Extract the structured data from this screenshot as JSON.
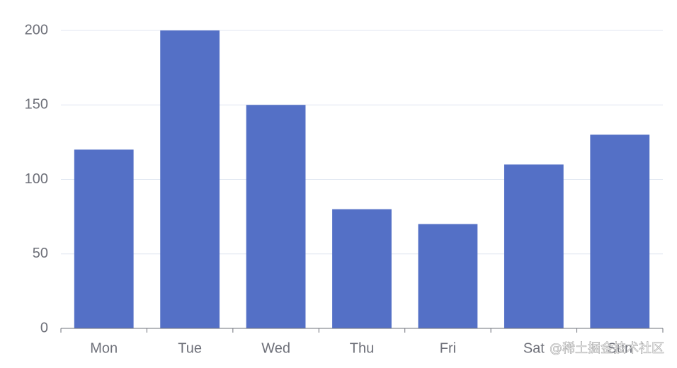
{
  "chart_data": {
    "type": "bar",
    "categories": [
      "Mon",
      "Tue",
      "Wed",
      "Thu",
      "Fri",
      "Sat",
      "Sun"
    ],
    "values": [
      120,
      200,
      150,
      80,
      70,
      110,
      130
    ],
    "color": "#5470c6",
    "ylim": [
      0,
      200
    ],
    "yticks": [
      0,
      50,
      100,
      150,
      200
    ],
    "grid": true
  },
  "watermark": "@稀土掘金技术社区"
}
